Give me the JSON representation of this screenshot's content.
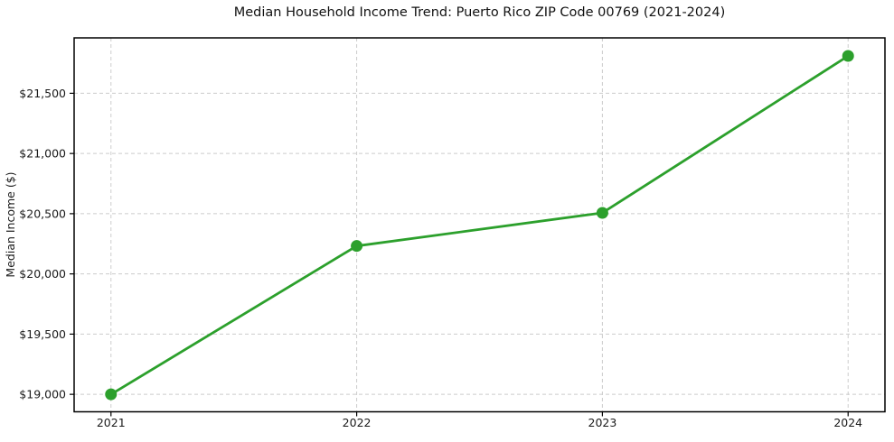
{
  "chart_data": {
    "type": "line",
    "title": "Median Household Income Trend: Puerto Rico ZIP Code 00769 (2021-2024)",
    "xlabel": "",
    "ylabel": "Median Income ($)",
    "x": [
      2021,
      2022,
      2023,
      2024
    ],
    "series": [
      {
        "name": "Median Household Income",
        "values": [
          19000,
          20232,
          20507,
          21810
        ]
      }
    ],
    "xlim": [
      2020.85,
      2024.15
    ],
    "ylim": [
      18855,
      21960
    ],
    "xticks": [
      2021,
      2022,
      2023,
      2024
    ],
    "xtick_labels": [
      "2021",
      "2022",
      "2023",
      "2024"
    ],
    "yticks": [
      19000,
      19500,
      20000,
      20500,
      21000,
      21500
    ],
    "ytick_labels": [
      "$19,000",
      "$19,500",
      "$20,000",
      "$20,500",
      "$21,000",
      "$21,500"
    ],
    "grid": true,
    "grid_style": "dashed",
    "legend": false,
    "marker": "circle"
  },
  "colors": {
    "line": "#2ca02c",
    "marker": "#2ca02c",
    "grid": "#cccccc",
    "spine": "#000000",
    "tick": "#000000",
    "text": "#1a1a1a",
    "background": "#ffffff"
  }
}
